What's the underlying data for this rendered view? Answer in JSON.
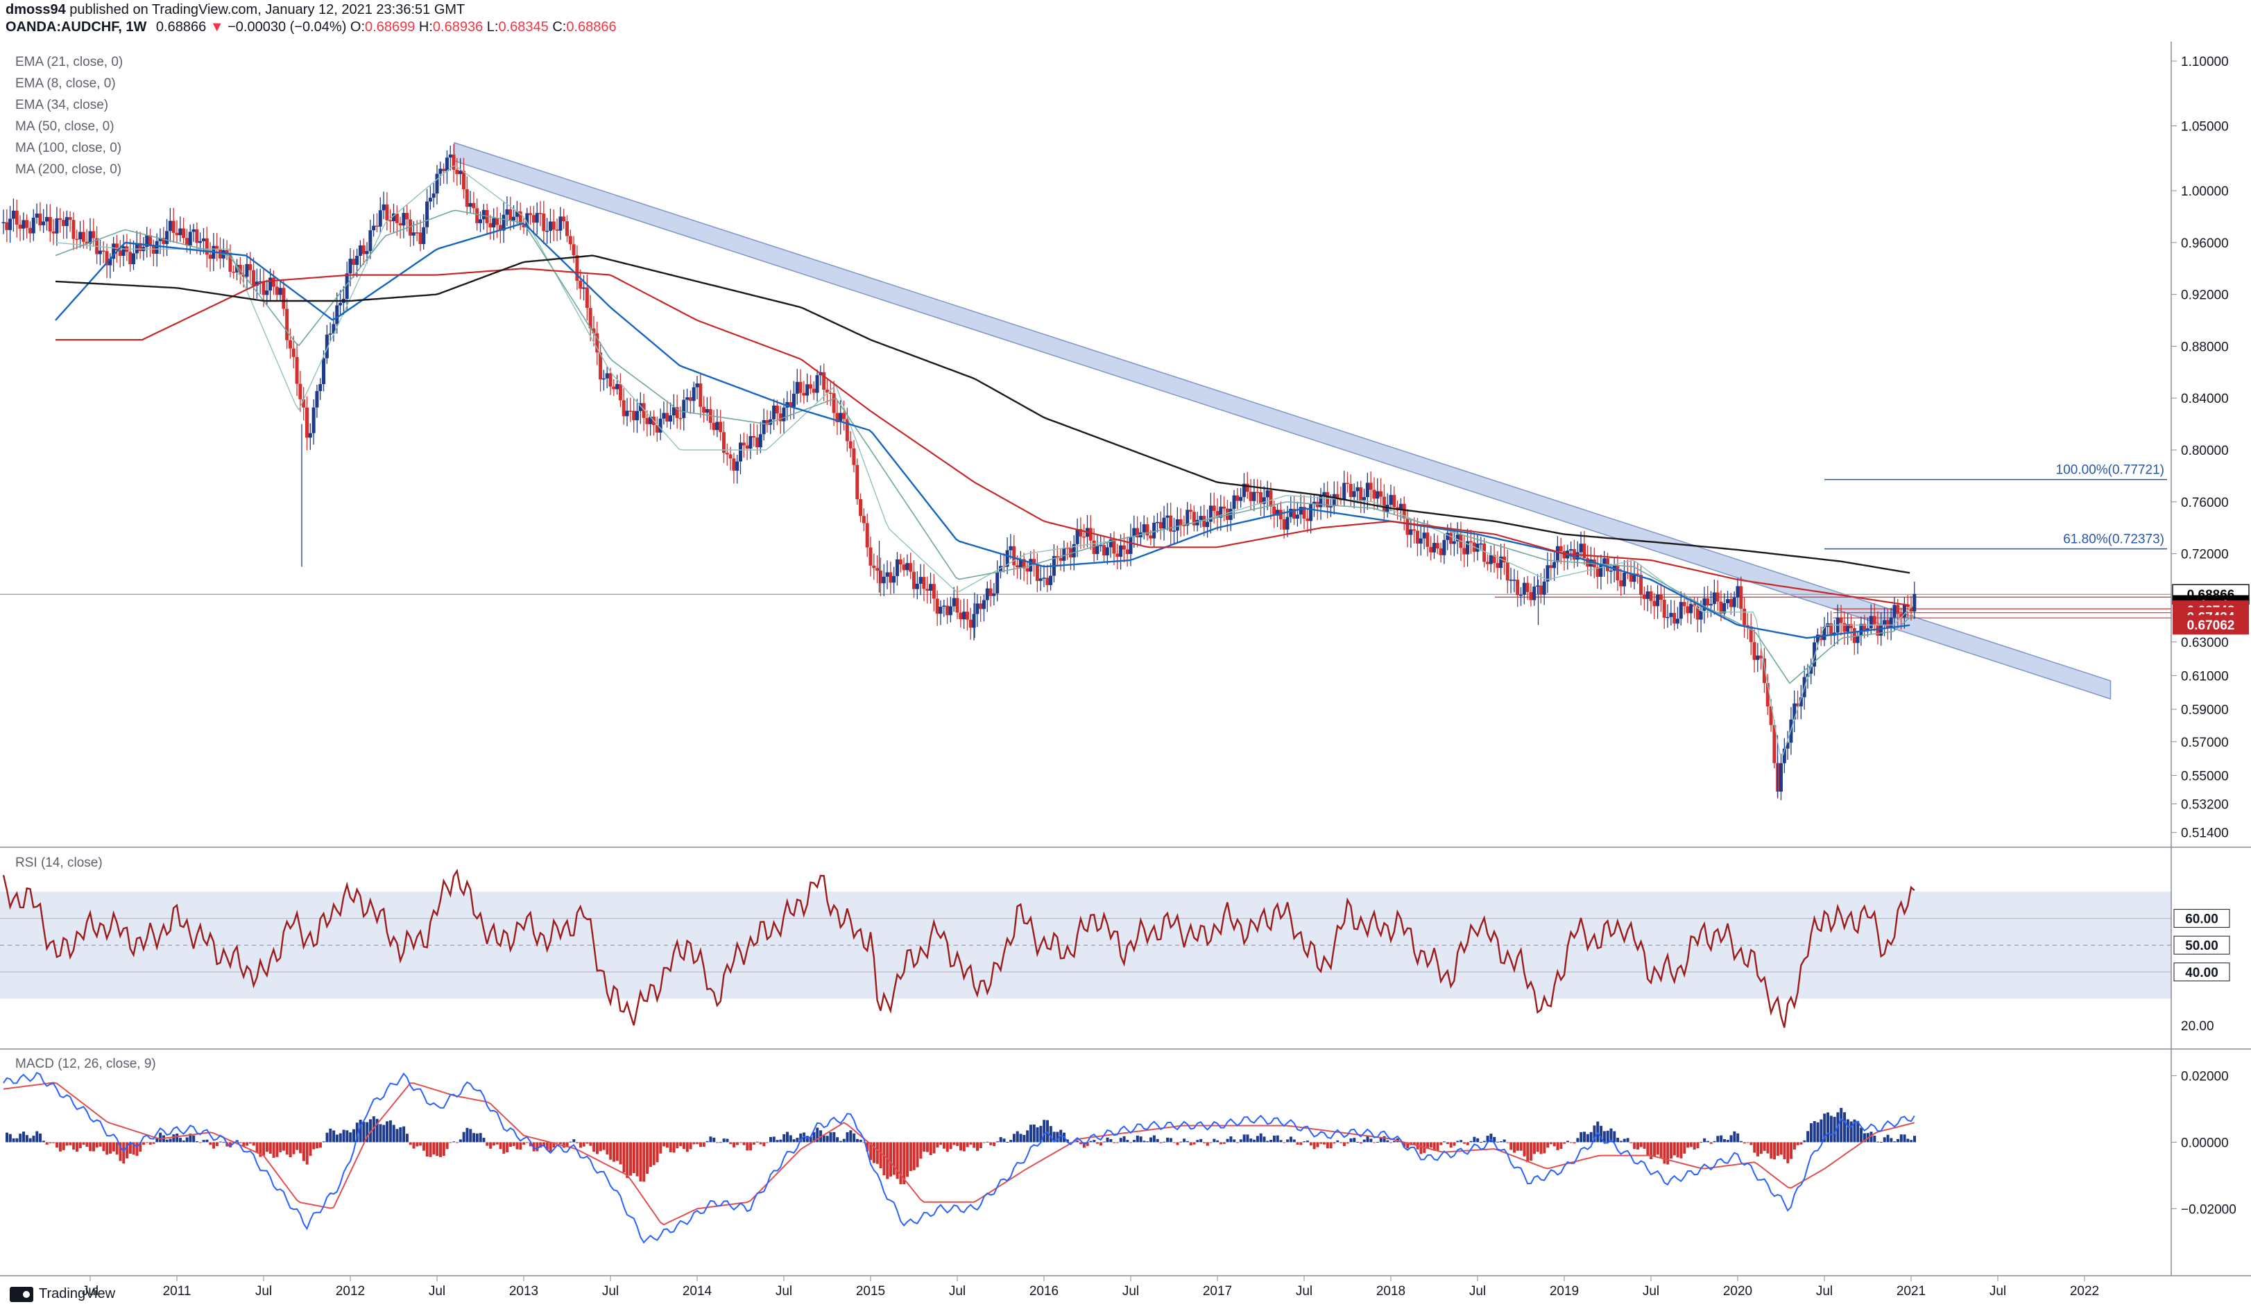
{
  "header": {
    "user": "dmoss94",
    "published": " published on TradingView.com, January 12, 2021 23:36:51 GMT",
    "symbol": "OANDA:AUDCHF, 1W",
    "last": "0.68866",
    "change_arrow": "▼",
    "change": "−0.00030 (−0.04%)",
    "o_label": "O:",
    "o_val": "0.68699",
    "h_label": "H:",
    "h_val": "0.68936",
    "l_label": "L:",
    "l_val": "0.68345",
    "c_label": "C:",
    "c_val": "0.68866"
  },
  "legend": [
    "EMA (21, close, 0)",
    "EMA (8, close, 0)",
    "EMA (34, close)",
    "MA (50, close, 0)",
    "MA (100, close, 0)",
    "MA (200, close, 0)"
  ],
  "rsi_title": "RSI (14, close)",
  "macd_title": "MACD (12, 26, close, 9)",
  "footer": {
    "brand": "TradingView",
    "logo_icon": "tradingview-logo-icon"
  },
  "colors": {
    "up": "#1e3a8a",
    "down": "#d32f2f",
    "ma200": "#1a1a1a",
    "ma100": "#c62828",
    "ma50": "#1565c0",
    "ema": "#6fa8a0",
    "channel": "#b8c7e8",
    "rsi": "#9c1c1c",
    "rsi_band": "#e3e8f5",
    "price_tag": "#000000",
    "level_tag": "#c0272d"
  },
  "chart_data": [
    {
      "type": "candlestick",
      "pane": "price",
      "x_ticks": [
        "Jul",
        "2011",
        "Jul",
        "2012",
        "Jul",
        "2013",
        "Jul",
        "2014",
        "Jul",
        "2015",
        "Jul",
        "2016",
        "Jul",
        "2017",
        "Jul",
        "2018",
        "Jul",
        "2019",
        "Jul",
        "2020",
        "Jul",
        "2021",
        "Jul",
        "2022"
      ],
      "y_ticks": [
        "1.10000",
        "1.05000",
        "1.00000",
        "0.96000",
        "0.92000",
        "0.88000",
        "0.84000",
        "0.80000",
        "0.76000",
        "0.72000",
        "0.68866",
        "0.63000",
        "0.61000",
        "0.59000",
        "0.57000",
        "0.55000",
        "0.53200",
        "0.51400"
      ],
      "y_range": [
        0.5,
        1.115
      ],
      "series": [
        {
          "name": "close",
          "x": [
            2010.35,
            2010.6,
            2010.8,
            2011.0,
            2011.2,
            2011.4,
            2011.6,
            2011.75,
            2011.9,
            2012.0,
            2012.2,
            2012.4,
            2012.55,
            2012.75,
            2013.0,
            2013.25,
            2013.45,
            2013.6,
            2013.8,
            2014.0,
            2014.2,
            2014.4,
            2014.55,
            2014.7,
            2014.85,
            2015.02,
            2015.2,
            2015.4,
            2015.6,
            2015.8,
            2016.0,
            2016.2,
            2016.4,
            2016.6,
            2016.8,
            2017.0,
            2017.2,
            2017.4,
            2017.6,
            2017.8,
            2018.0,
            2018.2,
            2018.4,
            2018.6,
            2018.8,
            2019.0,
            2019.2,
            2019.4,
            2019.6,
            2019.8,
            2020.0,
            2020.15,
            2020.23,
            2020.35,
            2020.5,
            2020.7,
            2020.9,
            2021.03
          ],
          "values": [
            0.975,
            0.95,
            0.955,
            0.97,
            0.955,
            0.935,
            0.92,
            0.81,
            0.9,
            0.94,
            0.985,
            0.965,
            1.03,
            0.975,
            0.98,
            0.97,
            0.86,
            0.83,
            0.82,
            0.845,
            0.79,
            0.82,
            0.84,
            0.855,
            0.82,
            0.7,
            0.71,
            0.68,
            0.67,
            0.72,
            0.7,
            0.735,
            0.72,
            0.74,
            0.745,
            0.75,
            0.77,
            0.745,
            0.76,
            0.77,
            0.76,
            0.725,
            0.73,
            0.715,
            0.685,
            0.725,
            0.71,
            0.7,
            0.672,
            0.68,
            0.685,
            0.625,
            0.545,
            0.61,
            0.665,
            0.66,
            0.67,
            0.688
          ]
        },
        {
          "name": "MA (200, close, 0)",
          "x": [
            2010.3,
            2011.0,
            2011.5,
            2012.0,
            2012.5,
            2013.0,
            2013.4,
            2014.0,
            2014.6,
            2015.0,
            2015.6,
            2016.0,
            2016.6,
            2017.0,
            2017.6,
            2018.0,
            2018.6,
            2019.0,
            2019.6,
            2020.0,
            2020.6,
            2021.0
          ],
          "values": [
            0.93,
            0.925,
            0.915,
            0.915,
            0.92,
            0.945,
            0.95,
            0.93,
            0.91,
            0.885,
            0.855,
            0.825,
            0.795,
            0.775,
            0.765,
            0.755,
            0.745,
            0.735,
            0.728,
            0.723,
            0.714,
            0.705
          ]
        },
        {
          "name": "MA (100, close, 0)",
          "x": [
            2010.3,
            2010.8,
            2011.5,
            2012.0,
            2012.5,
            2013.0,
            2013.5,
            2014.0,
            2014.6,
            2015.0,
            2015.6,
            2016.0,
            2016.6,
            2017.0,
            2017.6,
            2018.0,
            2018.6,
            2019.0,
            2019.5,
            2020.0,
            2020.5,
            2021.0
          ],
          "values": [
            0.885,
            0.885,
            0.93,
            0.935,
            0.935,
            0.94,
            0.935,
            0.9,
            0.87,
            0.83,
            0.775,
            0.745,
            0.725,
            0.725,
            0.74,
            0.745,
            0.735,
            0.72,
            0.715,
            0.7,
            0.69,
            0.68
          ]
        },
        {
          "name": "MA (50, close, 0)",
          "x": [
            2010.3,
            2010.7,
            2011.4,
            2011.9,
            2012.5,
            2013.0,
            2013.5,
            2013.9,
            2014.5,
            2015.0,
            2015.5,
            2016.0,
            2016.5,
            2017.0,
            2017.5,
            2018.0,
            2018.5,
            2019.0,
            2019.5,
            2020.0,
            2020.4,
            2020.7,
            2021.0
          ],
          "values": [
            0.9,
            0.96,
            0.95,
            0.9,
            0.955,
            0.975,
            0.91,
            0.865,
            0.835,
            0.815,
            0.73,
            0.71,
            0.715,
            0.74,
            0.755,
            0.745,
            0.735,
            0.72,
            0.7,
            0.665,
            0.655,
            0.66,
            0.665
          ]
        },
        {
          "name": "EMA (21, close, 0)",
          "x": [
            2010.3,
            2010.7,
            2011.3,
            2011.7,
            2012.2,
            2012.6,
            2013.0,
            2013.5,
            2013.9,
            2014.4,
            2014.8,
            2015.1,
            2015.5,
            2015.9,
            2016.4,
            2016.9,
            2017.4,
            2017.9,
            2018.4,
            2018.9,
            2019.4,
            2019.8,
            2020.1,
            2020.3,
            2020.6,
            2020.9,
            2021.03
          ],
          "values": [
            0.95,
            0.97,
            0.95,
            0.88,
            0.965,
            0.985,
            0.975,
            0.87,
            0.83,
            0.82,
            0.84,
            0.78,
            0.7,
            0.71,
            0.73,
            0.745,
            0.76,
            0.755,
            0.735,
            0.715,
            0.71,
            0.68,
            0.66,
            0.62,
            0.655,
            0.66,
            0.675
          ]
        },
        {
          "name": "EMA (8, close, 0)",
          "x": [
            2010.3,
            2010.7,
            2011.3,
            2011.7,
            2012.2,
            2012.6,
            2013.0,
            2013.5,
            2013.9,
            2014.4,
            2014.8,
            2015.1,
            2015.5,
            2015.9,
            2016.4,
            2016.9,
            2017.4,
            2017.9,
            2018.4,
            2018.9,
            2019.4,
            2019.8,
            2020.1,
            2020.25,
            2020.5,
            2020.9,
            2021.03
          ],
          "values": [
            0.96,
            0.955,
            0.955,
            0.83,
            0.975,
            1.02,
            0.98,
            0.86,
            0.8,
            0.8,
            0.85,
            0.74,
            0.69,
            0.72,
            0.73,
            0.745,
            0.765,
            0.76,
            0.73,
            0.7,
            0.715,
            0.675,
            0.675,
            0.56,
            0.665,
            0.665,
            0.683
          ]
        }
      ],
      "horizontal_levels": [
        {
          "label": "0.68866",
          "value": 0.68866
        },
        {
          "label": "2d 23h",
          "value": 0.6805
        },
        {
          "label": "0.68748",
          "value": 0.6775
        },
        {
          "label": "0.67434",
          "value": 0.6745
        },
        {
          "label": "0.67062",
          "value": 0.6705
        }
      ],
      "fib_levels": [
        {
          "label": "100.00%(0.77721)",
          "value": 0.77721
        },
        {
          "label": "61.80%(0.72373)",
          "value": 0.72373
        }
      ],
      "trend_channel": {
        "start": [
          2012.6,
          1.03
        ],
        "end": [
          2022.15,
          0.615
        ],
        "width": 0.014
      }
    },
    {
      "type": "line",
      "pane": "rsi",
      "y_ticks": [
        "60.00",
        "50.00",
        "40.00",
        "20.00"
      ],
      "y_range": [
        12,
        85
      ],
      "band": [
        30,
        70
      ],
      "series": [
        {
          "name": "RSI (14, close)",
          "x": [
            2010.0,
            2010.2,
            2010.3,
            2010.45,
            2010.6,
            2010.8,
            2011.0,
            2011.15,
            2011.3,
            2011.5,
            2011.65,
            2011.8,
            2011.95,
            2012.1,
            2012.3,
            2012.45,
            2012.6,
            2012.7,
            2012.85,
            2013.0,
            2013.15,
            2013.35,
            2013.5,
            2013.65,
            2013.8,
            2013.95,
            2014.1,
            2014.25,
            2014.4,
            2014.55,
            2014.7,
            2014.85,
            2015.0,
            2015.05,
            2015.2,
            2015.4,
            2015.55,
            2015.7,
            2015.85,
            2016.0,
            2016.15,
            2016.3,
            2016.45,
            2016.6,
            2016.75,
            2016.9,
            2017.05,
            2017.2,
            2017.35,
            2017.5,
            2017.6,
            2017.75,
            2017.9,
            2018.05,
            2018.2,
            2018.35,
            2018.5,
            2018.6,
            2018.75,
            2018.9,
            2019.05,
            2019.2,
            2019.35,
            2019.5,
            2019.65,
            2019.8,
            2019.95,
            2020.1,
            2020.2,
            2020.27,
            2020.4,
            2020.5,
            2020.6,
            2020.75,
            2020.85,
            2020.95,
            2021.03
          ],
          "values": [
            70,
            65,
            45,
            55,
            58,
            50,
            60,
            52,
            45,
            38,
            58,
            52,
            68,
            66,
            48,
            55,
            78,
            65,
            50,
            58,
            52,
            62,
            30,
            25,
            38,
            52,
            30,
            48,
            55,
            62,
            74,
            58,
            52,
            24,
            42,
            55,
            38,
            35,
            62,
            50,
            48,
            62,
            48,
            55,
            58,
            52,
            60,
            55,
            64,
            52,
            40,
            62,
            56,
            58,
            45,
            38,
            60,
            50,
            42,
            24,
            55,
            52,
            58,
            40,
            40,
            55,
            52,
            42,
            30,
            20,
            48,
            62,
            58,
            62,
            48,
            62,
            74
          ]
        }
      ]
    },
    {
      "type": "bar",
      "pane": "macd",
      "y_ticks": [
        "0.02000",
        "0.00000",
        "−0.02000"
      ],
      "y_range": [
        -0.036,
        0.027
      ],
      "series": [
        {
          "name": "MACD",
          "x": [
            2010.0,
            2010.2,
            2010.5,
            2010.7,
            2010.9,
            2011.1,
            2011.4,
            2011.6,
            2011.75,
            2011.95,
            2012.1,
            2012.3,
            2012.5,
            2012.7,
            2012.9,
            2013.1,
            2013.3,
            2013.5,
            2013.7,
            2013.9,
            2014.1,
            2014.3,
            2014.5,
            2014.7,
            2014.9,
            2015.05,
            2015.2,
            2015.4,
            2015.6,
            2015.8,
            2016.0,
            2016.2,
            2016.4,
            2016.6,
            2016.8,
            2017.0,
            2017.2,
            2017.4,
            2017.6,
            2017.8,
            2018.0,
            2018.2,
            2018.4,
            2018.6,
            2018.8,
            2019.0,
            2019.2,
            2019.4,
            2019.6,
            2019.8,
            2020.0,
            2020.15,
            2020.3,
            2020.45,
            2020.6,
            2020.8,
            2021.03
          ],
          "values": [
            0.018,
            0.02,
            0.008,
            -0.002,
            0.003,
            0.004,
            -0.002,
            -0.015,
            -0.025,
            -0.012,
            0.01,
            0.02,
            0.01,
            0.018,
            0.004,
            -0.002,
            -0.002,
            -0.012,
            -0.03,
            -0.025,
            -0.018,
            -0.02,
            -0.005,
            0.005,
            0.008,
            -0.012,
            -0.025,
            -0.02,
            -0.02,
            -0.01,
            0.002,
            0.0,
            0.003,
            0.005,
            0.005,
            0.005,
            0.007,
            0.006,
            0.002,
            0.003,
            0.002,
            -0.005,
            -0.003,
            0.0,
            -0.012,
            -0.008,
            0.002,
            -0.005,
            -0.012,
            -0.008,
            -0.004,
            -0.012,
            -0.02,
            -0.002,
            0.006,
            0.004,
            0.008
          ]
        },
        {
          "name": "Signal",
          "x": [
            2010.0,
            2010.3,
            2010.6,
            2010.9,
            2011.2,
            2011.5,
            2011.7,
            2011.9,
            2012.1,
            2012.35,
            2012.6,
            2012.8,
            2013.0,
            2013.3,
            2013.6,
            2013.8,
            2014.0,
            2014.3,
            2014.6,
            2014.85,
            2015.1,
            2015.3,
            2015.6,
            2015.9,
            2016.2,
            2016.5,
            2016.8,
            2017.1,
            2017.4,
            2017.7,
            2018.0,
            2018.3,
            2018.6,
            2018.9,
            2019.2,
            2019.5,
            2019.8,
            2020.1,
            2020.3,
            2020.5,
            2020.8,
            2021.03
          ],
          "values": [
            0.016,
            0.018,
            0.006,
            0.001,
            0.003,
            -0.004,
            -0.018,
            -0.02,
            0.002,
            0.018,
            0.014,
            0.012,
            0.002,
            -0.002,
            -0.01,
            -0.025,
            -0.02,
            -0.018,
            -0.002,
            0.006,
            -0.005,
            -0.018,
            -0.018,
            -0.008,
            0.001,
            0.003,
            0.005,
            0.005,
            0.005,
            0.003,
            0.001,
            -0.003,
            -0.002,
            -0.008,
            -0.004,
            -0.004,
            -0.008,
            -0.006,
            -0.014,
            -0.008,
            0.003,
            0.006
          ]
        }
      ]
    }
  ]
}
